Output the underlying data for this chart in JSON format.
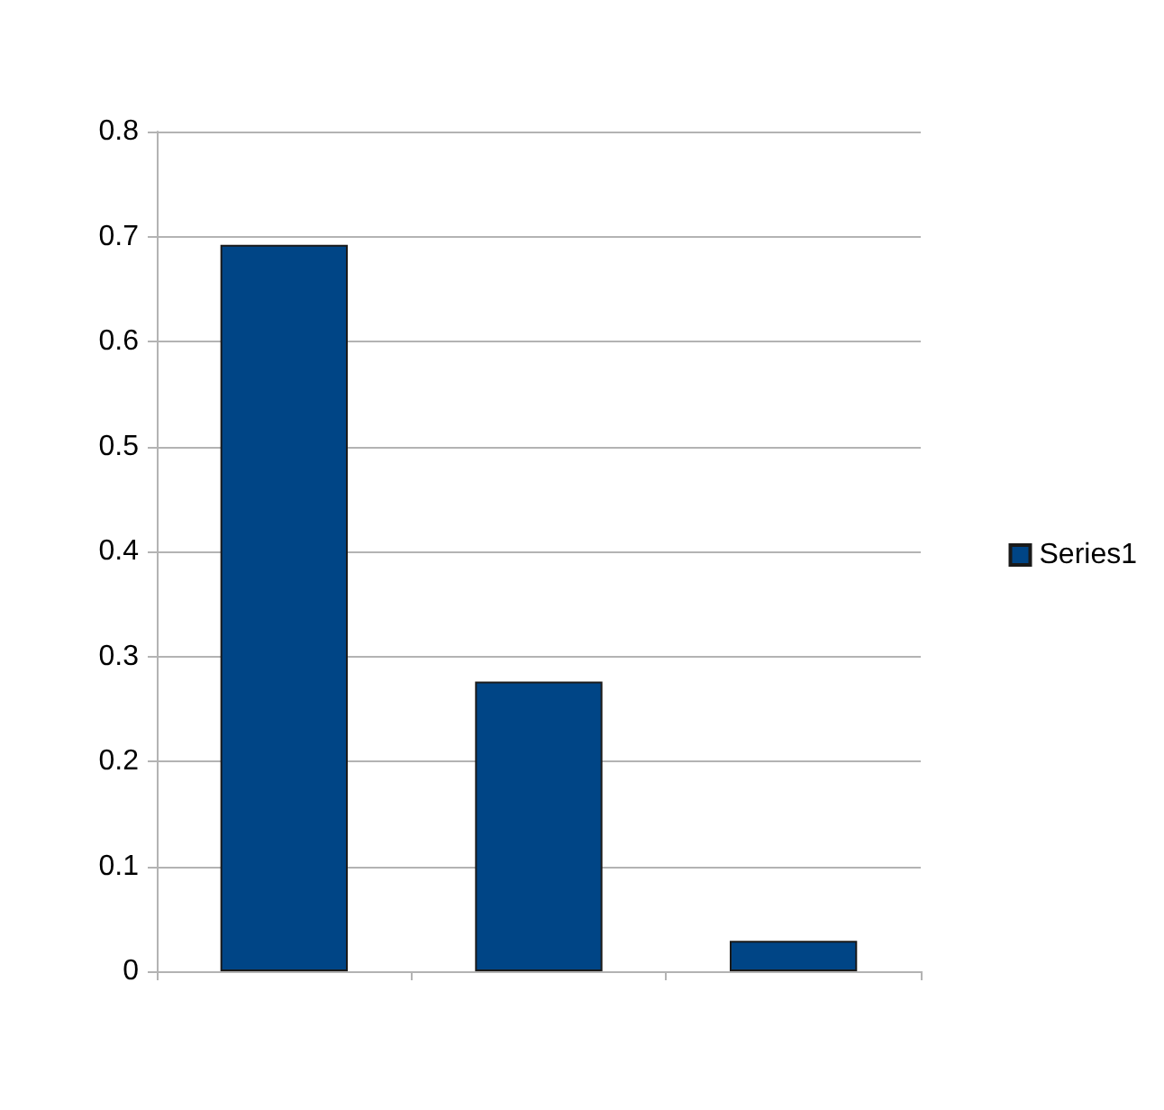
{
  "chart_data": {
    "type": "bar",
    "categories": [
      null,
      null,
      null
    ],
    "series": [
      {
        "name": "Series1",
        "color": "#004586",
        "values": [
          0.692,
          0.276,
          0.029
        ]
      }
    ],
    "ylim": [
      0,
      0.8
    ],
    "yticks": [
      0,
      0.1,
      0.2,
      0.3,
      0.4,
      0.5,
      0.6,
      0.7,
      0.8
    ],
    "grid": "y",
    "legend": "right"
  }
}
